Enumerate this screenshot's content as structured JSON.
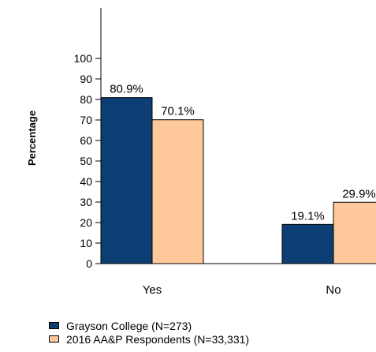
{
  "chart_data": {
    "type": "bar",
    "categories": [
      "Yes",
      "No"
    ],
    "series": [
      {
        "name": "Grayson College (N=273)",
        "values": [
          80.9,
          19.1
        ],
        "labels": [
          "80.9%",
          "19.1%"
        ],
        "color": "#0d3e73"
      },
      {
        "name": "2016 AA&P Respondents (N=33,331)",
        "values": [
          70.1,
          29.9
        ],
        "labels": [
          "70.1%",
          "29.9%"
        ],
        "color": "#ffc89a"
      }
    ],
    "title": "",
    "xlabel": "",
    "ylabel": "Percentage",
    "ylim": [
      0,
      100
    ],
    "yticks": [
      "0",
      "10",
      "20",
      "30",
      "40",
      "50",
      "60",
      "70",
      "80",
      "90",
      "100"
    ],
    "grid": false,
    "legend_position": "bottom-left"
  }
}
